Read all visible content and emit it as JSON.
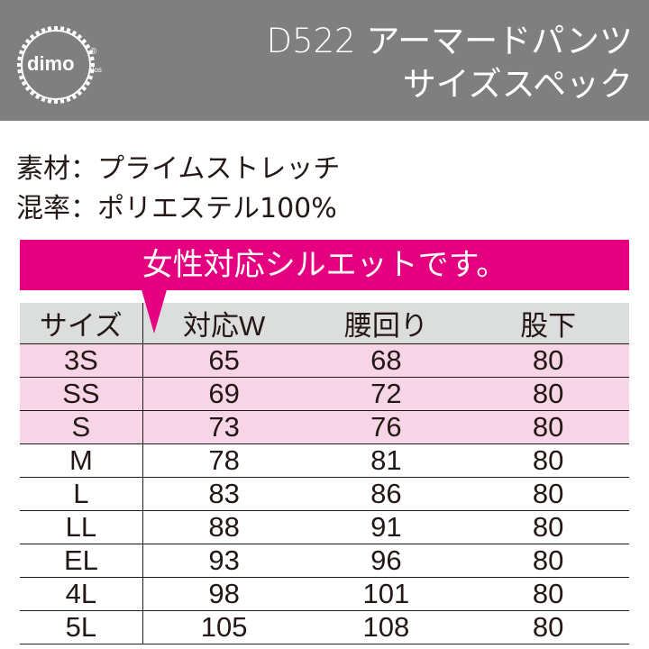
{
  "header": {
    "logo_text": "dimo",
    "logo_registered": "®",
    "logo_sub": "dos",
    "title_line1": "D522 アーマードパンツ",
    "title_line2": "サイズスペック"
  },
  "specs": {
    "material": "素材：プライムストレッチ",
    "blend": "混率：ポリエステル100%"
  },
  "banner": {
    "text": "女性対応シルエットです。"
  },
  "table": {
    "headers": [
      "サイズ",
      "対応W",
      "腰回り",
      "股下"
    ],
    "rows": [
      {
        "size": "3S",
        "w": "65",
        "hip": "68",
        "inseam": "80",
        "highlight": true
      },
      {
        "size": "SS",
        "w": "69",
        "hip": "72",
        "inseam": "80",
        "highlight": true
      },
      {
        "size": "S",
        "w": "73",
        "hip": "76",
        "inseam": "80",
        "highlight": true
      },
      {
        "size": "M",
        "w": "78",
        "hip": "81",
        "inseam": "80",
        "highlight": false
      },
      {
        "size": "L",
        "w": "83",
        "hip": "86",
        "inseam": "80",
        "highlight": false
      },
      {
        "size": "LL",
        "w": "88",
        "hip": "91",
        "inseam": "80",
        "highlight": false
      },
      {
        "size": "EL",
        "w": "93",
        "hip": "96",
        "inseam": "80",
        "highlight": false
      },
      {
        "size": "4L",
        "w": "98",
        "hip": "101",
        "inseam": "80",
        "highlight": false
      },
      {
        "size": "5L",
        "w": "105",
        "hip": "108",
        "inseam": "80",
        "highlight": false
      }
    ]
  },
  "colors": {
    "header_bg": "#7f7f7f",
    "banner": "#e4007f",
    "highlight_row": "#f7d4e6",
    "table_header_bg": "#dcdddd"
  }
}
